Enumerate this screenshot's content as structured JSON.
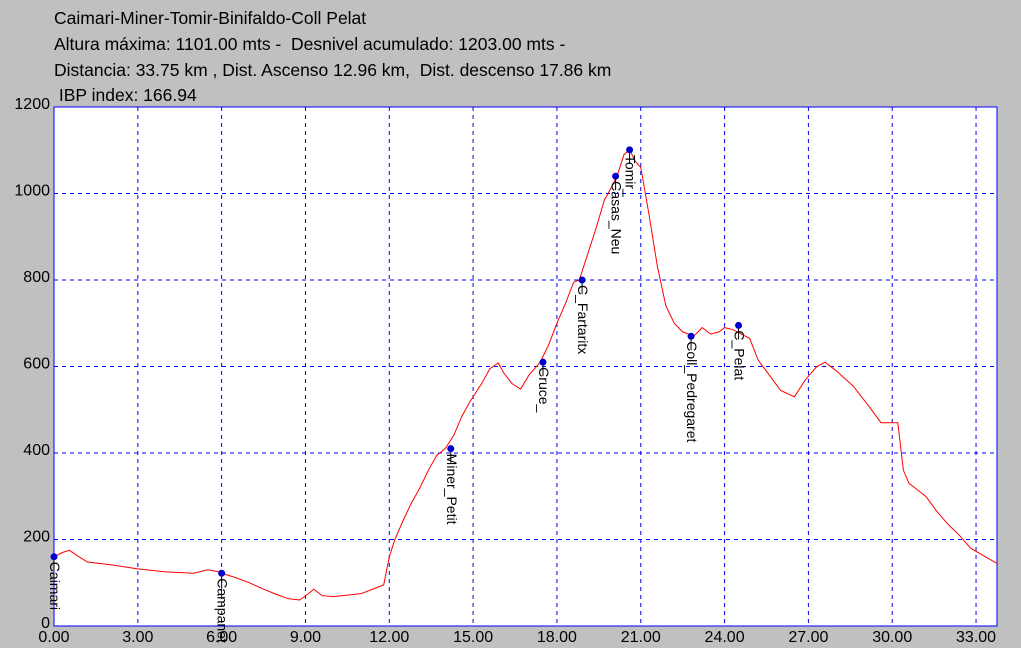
{
  "header": {
    "title": "Caimari-Miner-Tomir-Binifaldo-Coll Pelat",
    "line2": "Altura máxima: 1101.00 mts -  Desnivel acumulado: 1203.00 mts -",
    "line3": "Distancia: 33.75 km , Dist. Ascenso 12.96 km,  Dist. descenso 17.86 km",
    "line4": " IBP index: 166.94"
  },
  "colors": {
    "background": "#c0c0c0",
    "plot_background": "#ffffff",
    "grid": "#0000ff",
    "profile_line": "#ff0000",
    "waypoint": "#0000cc"
  },
  "chart_data": {
    "type": "line",
    "xlim": [
      0,
      33.75
    ],
    "ylim": [
      0,
      1200
    ],
    "x_ticks": [
      "0.00",
      "3.00",
      "6.00",
      "9.00",
      "12.00",
      "15.00",
      "18.00",
      "21.00",
      "24.00",
      "27.00",
      "30.00",
      "33.00"
    ],
    "x_tick_values": [
      0,
      3,
      6,
      9,
      12,
      15,
      18,
      21,
      24,
      27,
      30,
      33
    ],
    "y_ticks": [
      "0",
      "200",
      "400",
      "600",
      "800",
      "1000",
      "1200"
    ],
    "y_tick_values": [
      0,
      200,
      400,
      600,
      800,
      1000,
      1200
    ],
    "grid": true,
    "series": [
      {
        "x": [
          0.0,
          0.3,
          0.55,
          0.85,
          1.2,
          2.0,
          3.0,
          4.0,
          5.0,
          5.5,
          5.9,
          6.1,
          6.5,
          7.0,
          7.5,
          8.0,
          8.4,
          8.8,
          9.1,
          9.3,
          9.6,
          10.0,
          11.0,
          11.8,
          12.0,
          12.2,
          12.5,
          12.8,
          13.1,
          13.4,
          13.7,
          14.0,
          14.3,
          14.6,
          14.9,
          15.3,
          15.6,
          15.9,
          16.1,
          16.4,
          16.7,
          17.0,
          17.2,
          17.4,
          17.7,
          18.0,
          18.3,
          18.6,
          18.8,
          19.1,
          19.4,
          19.7,
          20.0,
          20.2,
          20.4,
          20.6,
          20.8,
          21.0,
          21.3,
          21.6,
          21.9,
          22.2,
          22.5,
          22.9,
          23.2,
          23.5,
          23.8,
          24.0,
          24.3,
          24.6,
          24.9,
          25.2,
          25.6,
          26.0,
          26.5,
          26.9,
          27.3,
          27.6,
          28.0,
          28.6,
          29.2,
          29.6,
          29.8,
          30.2,
          30.4,
          30.6,
          30.8,
          31.2,
          31.6,
          32.0,
          32.4,
          32.8,
          33.2,
          33.6,
          33.75
        ],
        "y": [
          160,
          170,
          175,
          162,
          148,
          142,
          132,
          125,
          122,
          130,
          125,
          120,
          112,
          100,
          85,
          72,
          63,
          60,
          75,
          85,
          70,
          68,
          75,
          95,
          160,
          200,
          245,
          285,
          320,
          360,
          395,
          410,
          440,
          485,
          520,
          560,
          595,
          608,
          585,
          560,
          548,
          580,
          595,
          610,
          650,
          700,
          745,
          795,
          800,
          860,
          920,
          985,
          1020,
          1050,
          1090,
          1101,
          1075,
          1060,
          950,
          830,
          740,
          700,
          680,
          670,
          690,
          675,
          680,
          690,
          685,
          675,
          665,
          615,
          580,
          545,
          530,
          570,
          600,
          610,
          590,
          555,
          505,
          470,
          470,
          470,
          360,
          330,
          320,
          300,
          265,
          235,
          210,
          180,
          165,
          150,
          145
        ]
      }
    ],
    "waypoints": [
      {
        "name": "Caimari",
        "x": 0.0,
        "y": 160
      },
      {
        "name": "Campanet",
        "x": 6.0,
        "y": 122
      },
      {
        "name": "Miner_Petit",
        "x": 14.2,
        "y": 410
      },
      {
        "name": "Cruce_",
        "x": 17.5,
        "y": 610
      },
      {
        "name": "C_Fartaritx",
        "x": 18.9,
        "y": 800
      },
      {
        "name": "Casas_Neu",
        "x": 20.1,
        "y": 1040
      },
      {
        "name": "Tomir_",
        "x": 20.6,
        "y": 1101
      },
      {
        "name": "Coll_Pedregaret",
        "x": 22.8,
        "y": 670
      },
      {
        "name": "C_Pelat",
        "x": 24.5,
        "y": 695
      }
    ]
  }
}
